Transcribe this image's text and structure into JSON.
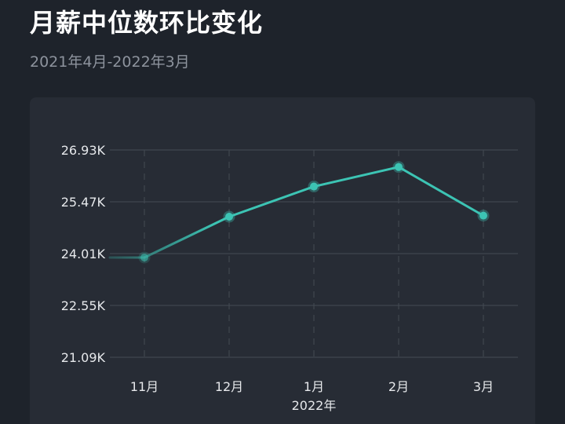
{
  "title": "月薪中位数环比变化",
  "subtitle": "2021年4月-2022年3月",
  "colors": {
    "background": "#1e232b",
    "card": "#272c35",
    "line": "#3cc4b4",
    "grid": "#40464f",
    "text": "#e6e8eb"
  },
  "chart_data": {
    "type": "line",
    "title": "月薪中位数环比变化",
    "subtitle": "2021年4月-2022年3月",
    "categories": [
      "11月",
      "12月",
      "1月",
      "2月",
      "3月"
    ],
    "x_group_label": "2022年",
    "y_tick_labels": [
      "26.93K",
      "25.47K",
      "24.01K",
      "22.55K",
      "21.09K"
    ],
    "y_ticks": [
      26.93,
      25.47,
      24.01,
      22.55,
      21.09
    ],
    "ylim": [
      21.09,
      26.93
    ],
    "values": [
      23.9,
      25.05,
      25.9,
      26.45,
      25.08
    ],
    "grid": true,
    "legend": "none"
  }
}
